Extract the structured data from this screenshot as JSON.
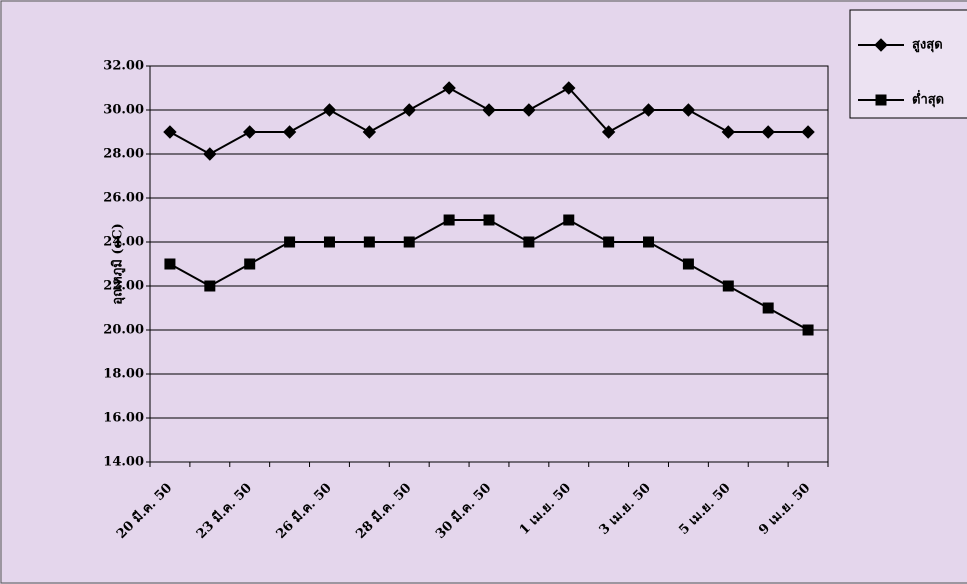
{
  "chart_data": {
    "type": "line",
    "y_label": "อุณหภูมิ (oC)",
    "categories": [
      "20 มี.ค. 50",
      null,
      "23 มี.ค. 50",
      null,
      "26 มี.ค. 50",
      null,
      "28 มี.ค. 50",
      null,
      "30 มี.ค. 50",
      null,
      "1 เม.ย. 50",
      null,
      "3 เม.ย. 50",
      null,
      "5 เม.ย. 50",
      null,
      "9 เม.ย. 50"
    ],
    "series": [
      {
        "name": "สูงสุด",
        "color": "#000000",
        "marker": "diamond",
        "values": [
          29,
          28,
          29,
          29,
          30,
          29,
          30,
          31,
          30,
          30,
          31,
          29,
          30,
          30,
          29,
          29,
          29
        ]
      },
      {
        "name": "ต่ำสุด",
        "color": "#000000",
        "marker": "square",
        "values": [
          23,
          22,
          23,
          24,
          24,
          24,
          24,
          25,
          25,
          24,
          25,
          24,
          24,
          23,
          22,
          21,
          20
        ]
      }
    ],
    "ylim": [
      14,
      32
    ],
    "yticks": [
      {
        "value": 14,
        "label": "14.00"
      },
      {
        "value": 16,
        "label": "16.00"
      },
      {
        "value": 18,
        "label": "18.00"
      },
      {
        "value": 20,
        "label": "20.00"
      },
      {
        "value": 22,
        "label": "22.00"
      },
      {
        "value": 24,
        "label": "24.00"
      },
      {
        "value": 26,
        "label": "26.00"
      },
      {
        "value": 28,
        "label": "28.00"
      },
      {
        "value": 30,
        "label": "30.00"
      },
      {
        "value": 32,
        "label": "32.00"
      }
    ],
    "grid": true,
    "legend": "top-right"
  }
}
